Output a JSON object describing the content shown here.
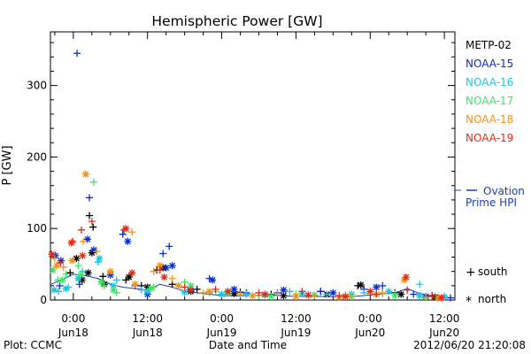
{
  "chart_data": {
    "type": "scatter",
    "title": "Hemispheric Power [GW]",
    "xlabel": "Date and Time",
    "ylabel": "P [GW]",
    "ylim": [
      0,
      375
    ],
    "xlim": [
      -3.7,
      61.7
    ],
    "grid": false,
    "legend_position": "right",
    "y_ticks": [
      0,
      100,
      200,
      300
    ],
    "x_ticks": [
      {
        "x": 0,
        "line1": "0:00",
        "line2": "Jun18"
      },
      {
        "x": 12,
        "line1": "12:00",
        "line2": "Jun18"
      },
      {
        "x": 24,
        "line1": "0:00",
        "line2": "Jun19"
      },
      {
        "x": 36,
        "line1": "12:00",
        "line2": "Jun19"
      },
      {
        "x": 48,
        "line1": "0:00",
        "line2": "Jun20"
      },
      {
        "x": 60,
        "line1": "12:00",
        "line2": "Jun20"
      }
    ],
    "series": [
      {
        "name": "METP-02",
        "color": "#000000",
        "south": [
          [
            2.6,
            118
          ],
          [
            3.2,
            102
          ],
          [
            -0.5,
            38
          ],
          [
            4.8,
            33
          ],
          [
            8.5,
            28
          ],
          [
            11,
            20
          ],
          [
            13.5,
            42
          ],
          [
            16,
            22
          ],
          [
            20,
            15
          ],
          [
            27,
            11
          ],
          [
            32,
            8
          ],
          [
            40,
            12
          ],
          [
            46,
            20
          ],
          [
            52,
            10
          ],
          [
            58,
            6
          ]
        ],
        "north": [
          [
            0.5,
            58
          ],
          [
            1.4,
            28
          ],
          [
            2.4,
            38
          ],
          [
            3.0,
            66
          ],
          [
            5,
            22
          ],
          [
            9,
            32
          ],
          [
            12,
            18
          ],
          [
            14.5,
            45
          ],
          [
            19,
            12
          ],
          [
            26,
            9
          ],
          [
            34,
            6
          ],
          [
            41,
            8
          ],
          [
            46.5,
            21
          ],
          [
            53,
            8
          ],
          [
            58.5,
            4
          ]
        ]
      },
      {
        "name": "NOAA-15",
        "color": "#0c2cc4",
        "south": [
          [
            0.6,
            345
          ],
          [
            2.6,
            143
          ],
          [
            -2.2,
            20
          ],
          [
            8,
            92
          ],
          [
            14.5,
            65
          ],
          [
            15.5,
            75
          ],
          [
            1,
            22
          ],
          [
            10,
            20
          ],
          [
            19,
            15
          ],
          [
            22,
            30
          ],
          [
            28,
            10
          ],
          [
            33,
            10
          ],
          [
            40,
            12
          ],
          [
            47,
            15
          ],
          [
            50,
            20
          ],
          [
            55,
            8
          ],
          [
            61,
            3
          ]
        ],
        "north": [
          [
            -2.9,
            62
          ],
          [
            -2.0,
            55
          ],
          [
            2.3,
            85
          ],
          [
            3.3,
            70
          ],
          [
            8.8,
            82
          ],
          [
            15,
            45
          ],
          [
            16,
            48
          ],
          [
            22.5,
            28
          ],
          [
            6,
            35
          ],
          [
            12,
            8
          ],
          [
            26,
            15
          ],
          [
            34,
            14
          ],
          [
            42,
            10
          ],
          [
            49,
            18
          ],
          [
            57,
            5
          ]
        ]
      },
      {
        "name": "NOAA-16",
        "color": "#1ec4de",
        "south": [
          [
            -2.4,
            12
          ],
          [
            -0.8,
            18
          ],
          [
            1.5,
            40
          ],
          [
            4,
            53
          ],
          [
            7,
            28
          ],
          [
            11,
            14
          ],
          [
            17,
            20
          ],
          [
            22,
            10
          ],
          [
            28,
            8
          ],
          [
            35,
            12
          ],
          [
            41,
            8
          ],
          [
            47,
            10
          ],
          [
            52,
            9
          ],
          [
            56,
            22
          ],
          [
            60,
            5
          ]
        ],
        "north": [
          [
            -3.1,
            14
          ],
          [
            -1.2,
            16
          ],
          [
            0.8,
            30
          ],
          [
            4.2,
            58
          ],
          [
            6.5,
            20
          ],
          [
            12,
            12
          ],
          [
            18,
            11
          ],
          [
            24,
            8
          ],
          [
            31,
            7
          ],
          [
            37,
            9
          ],
          [
            45,
            8
          ],
          [
            51,
            12
          ],
          [
            56,
            6
          ],
          [
            60,
            4
          ]
        ]
      },
      {
        "name": "NOAA-17",
        "color": "#3ce664",
        "south": [
          [
            3.3,
            165
          ],
          [
            -2.5,
            28
          ],
          [
            -1.2,
            36
          ],
          [
            0.8,
            48
          ],
          [
            5,
            20
          ],
          [
            7,
            10
          ],
          [
            13,
            18
          ],
          [
            18,
            25
          ],
          [
            23,
            12
          ],
          [
            30,
            6
          ],
          [
            36,
            8
          ],
          [
            44,
            7
          ],
          [
            50,
            9
          ],
          [
            57,
            3
          ]
        ],
        "north": [
          [
            -3.3,
            42
          ],
          [
            -1.8,
            28
          ],
          [
            1.2,
            35
          ],
          [
            4.5,
            25
          ],
          [
            6.5,
            14
          ],
          [
            12.5,
            16
          ],
          [
            19,
            20
          ],
          [
            25,
            10
          ],
          [
            32,
            5
          ],
          [
            39,
            7
          ],
          [
            45,
            5
          ],
          [
            52,
            6
          ],
          [
            59,
            3
          ]
        ]
      },
      {
        "name": "NOAA-18",
        "color": "#f09218",
        "south": [
          [
            -3.0,
            58
          ],
          [
            -1.6,
            46
          ],
          [
            1.6,
            82
          ],
          [
            3.8,
            68
          ],
          [
            9.5,
            95
          ],
          [
            13,
            40
          ],
          [
            16,
            30
          ],
          [
            21,
            10
          ],
          [
            27,
            8
          ],
          [
            33,
            9
          ],
          [
            39,
            6
          ],
          [
            45,
            5
          ],
          [
            50,
            10
          ],
          [
            57,
            4
          ]
        ],
        "north": [
          [
            2.0,
            176
          ],
          [
            -2.7,
            48
          ],
          [
            -0.2,
            55
          ],
          [
            6,
            40
          ],
          [
            10,
            22
          ],
          [
            14,
            48
          ],
          [
            17,
            20
          ],
          [
            22,
            12
          ],
          [
            29,
            6
          ],
          [
            36,
            5
          ],
          [
            43,
            4
          ],
          [
            49,
            8
          ],
          [
            53.5,
            28
          ],
          [
            59,
            3
          ]
        ]
      },
      {
        "name": "NOAA-19",
        "color": "#e42a14",
        "south": [
          [
            -2.1,
            52
          ],
          [
            -0.1,
            82
          ],
          [
            1.3,
            98
          ],
          [
            3.0,
            110
          ],
          [
            8.2,
            98
          ],
          [
            14,
            42
          ],
          [
            18,
            18
          ],
          [
            23,
            15
          ],
          [
            30,
            10
          ],
          [
            37,
            12
          ],
          [
            43,
            6
          ],
          [
            49,
            8
          ],
          [
            54,
            14
          ],
          [
            58,
            5
          ]
        ],
        "north": [
          [
            -3.5,
            64
          ],
          [
            -0.3,
            80
          ],
          [
            1.5,
            62
          ],
          [
            8.5,
            100
          ],
          [
            9.5,
            38
          ],
          [
            14.7,
            32
          ],
          [
            19,
            14
          ],
          [
            25,
            12
          ],
          [
            31,
            8
          ],
          [
            38,
            7
          ],
          [
            44,
            5
          ],
          [
            48,
            12
          ],
          [
            53.8,
            32
          ],
          [
            59.5,
            3
          ]
        ]
      }
    ],
    "ovation_curve": [
      [
        -3.6,
        22
      ],
      [
        -2,
        28
      ],
      [
        0,
        36
      ],
      [
        2,
        34
      ],
      [
        4,
        30
      ],
      [
        6,
        22
      ],
      [
        8,
        18
      ],
      [
        10,
        16
      ],
      [
        12,
        14
      ],
      [
        14,
        22
      ],
      [
        16,
        18
      ],
      [
        18,
        12
      ],
      [
        20,
        10
      ],
      [
        24,
        6
      ],
      [
        28,
        6
      ],
      [
        32,
        7
      ],
      [
        36,
        5
      ],
      [
        40,
        5
      ],
      [
        44,
        4
      ],
      [
        48,
        7
      ],
      [
        52,
        10
      ],
      [
        54,
        16
      ],
      [
        56,
        9
      ],
      [
        58,
        5
      ],
      [
        61.5,
        3
      ]
    ],
    "legend": {
      "ovation_line1": "Ovation",
      "ovation_line2": "Prime HPI",
      "ovation_color": "#1a3fb0",
      "south_label": "south",
      "north_label": "north",
      "south_symbol": "+",
      "north_symbol": "*"
    },
    "footer": {
      "plot_credit": "Plot: CCMC",
      "timestamp": "2012/06/20 21:20:08"
    }
  }
}
